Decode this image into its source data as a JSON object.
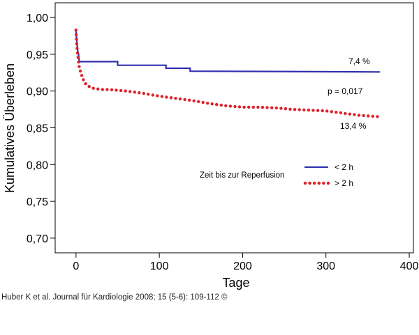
{
  "citation": "Huber K et al. Journal für Kardiologie 2008; 15 (5-6): 109-112 ©",
  "chart_data": {
    "type": "line",
    "title": "",
    "xlabel": "Tage",
    "ylabel": "Kumulatives Überleben",
    "xlim": [
      -25,
      405
    ],
    "ylim": [
      0.68,
      1.02
    ],
    "xticks": [
      0,
      100,
      200,
      300,
      400
    ],
    "xtick_labels": [
      "0",
      "100",
      "200",
      "300",
      "400"
    ],
    "yticks": [
      0.7,
      0.75,
      0.8,
      0.85,
      0.9,
      0.95,
      1.0
    ],
    "ytick_labels": [
      "0,70",
      "0,75",
      "0,80",
      "0,85",
      "0,90",
      "0,95",
      "1,00"
    ],
    "grid": false,
    "legend": {
      "title": "Zeit bis zur Reperfusion",
      "entries": [
        "< 2 h",
        "> 2 h"
      ],
      "position": "center-right"
    },
    "series": [
      {
        "name": "< 2 h",
        "color": "#3030b0",
        "style": "solid-step",
        "end_label": "7,4 %",
        "x": [
          0,
          0.5,
          1,
          1.5,
          2,
          3,
          3.5,
          4,
          5,
          50,
          50,
          108,
          108,
          137,
          137,
          365
        ],
        "y": [
          0.983,
          0.975,
          0.968,
          0.962,
          0.955,
          0.95,
          0.945,
          0.94,
          0.94,
          0.94,
          0.935,
          0.935,
          0.931,
          0.931,
          0.927,
          0.926
        ]
      },
      {
        "name": "> 2 h",
        "color": "#e0202a",
        "style": "dotted",
        "end_label": "13,4 %",
        "x": [
          0,
          1,
          2,
          3,
          4,
          6,
          8,
          10,
          13,
          16,
          20,
          25,
          30,
          40,
          60,
          80,
          100,
          120,
          140,
          160,
          180,
          200,
          220,
          240,
          260,
          280,
          300,
          320,
          340,
          365
        ],
        "y": [
          0.983,
          0.96,
          0.95,
          0.94,
          0.932,
          0.924,
          0.918,
          0.912,
          0.908,
          0.906,
          0.904,
          0.903,
          0.902,
          0.902,
          0.9,
          0.897,
          0.893,
          0.89,
          0.887,
          0.883,
          0.88,
          0.878,
          0.878,
          0.877,
          0.875,
          0.874,
          0.873,
          0.87,
          0.867,
          0.865
        ]
      }
    ],
    "annotations": [
      {
        "text": "p = 0,017",
        "x": 320,
        "y": 0.913
      }
    ]
  }
}
